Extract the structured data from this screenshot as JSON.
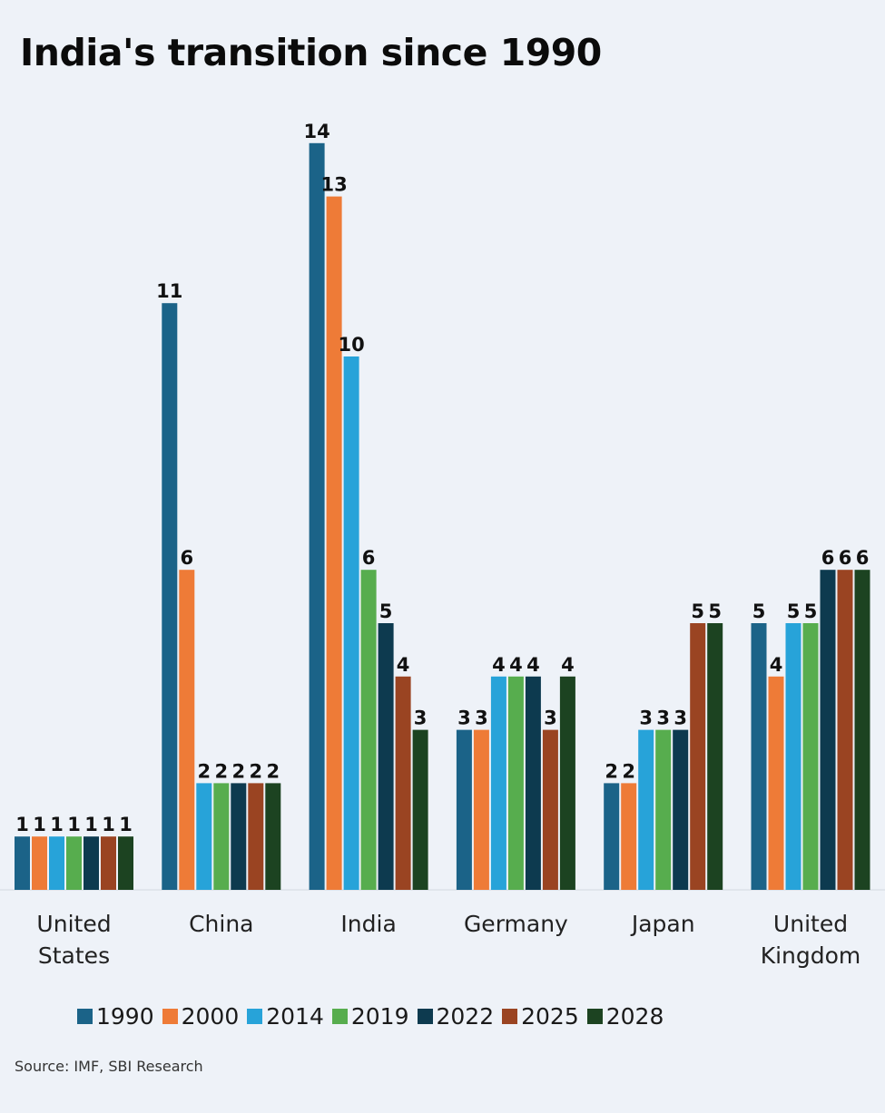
{
  "chart_data": {
    "type": "bar",
    "title": "India's transition since 1990",
    "categories": [
      [
        "United",
        "States"
      ],
      [
        "China"
      ],
      [
        "India"
      ],
      [
        "Germany"
      ],
      [
        "Japan"
      ],
      [
        "United",
        "Kingdom"
      ]
    ],
    "series": [
      {
        "name": "1990",
        "color": "#1b6388",
        "values": [
          1,
          11,
          14,
          3,
          2,
          5
        ]
      },
      {
        "name": "2000",
        "color": "#ee7b37",
        "values": [
          1,
          6,
          13,
          3,
          2,
          4
        ]
      },
      {
        "name": "2014",
        "color": "#27a3d9",
        "values": [
          1,
          2,
          10,
          4,
          3,
          5
        ]
      },
      {
        "name": "2019",
        "color": "#57ad4e",
        "values": [
          1,
          2,
          6,
          4,
          3,
          5
        ]
      },
      {
        "name": "2022",
        "color": "#0d3a4f",
        "values": [
          1,
          2,
          5,
          4,
          3,
          6
        ]
      },
      {
        "name": "2025",
        "color": "#9a4422",
        "values": [
          1,
          2,
          4,
          3,
          5,
          6
        ]
      },
      {
        "name": "2028",
        "color": "#1c4321",
        "values": [
          1,
          2,
          3,
          4,
          5,
          6
        ]
      }
    ],
    "ylim": [
      0,
      14
    ],
    "grid": false,
    "legend_position": "bottom",
    "data_labels": true
  },
  "source": "Source: IMF, SBI Research"
}
